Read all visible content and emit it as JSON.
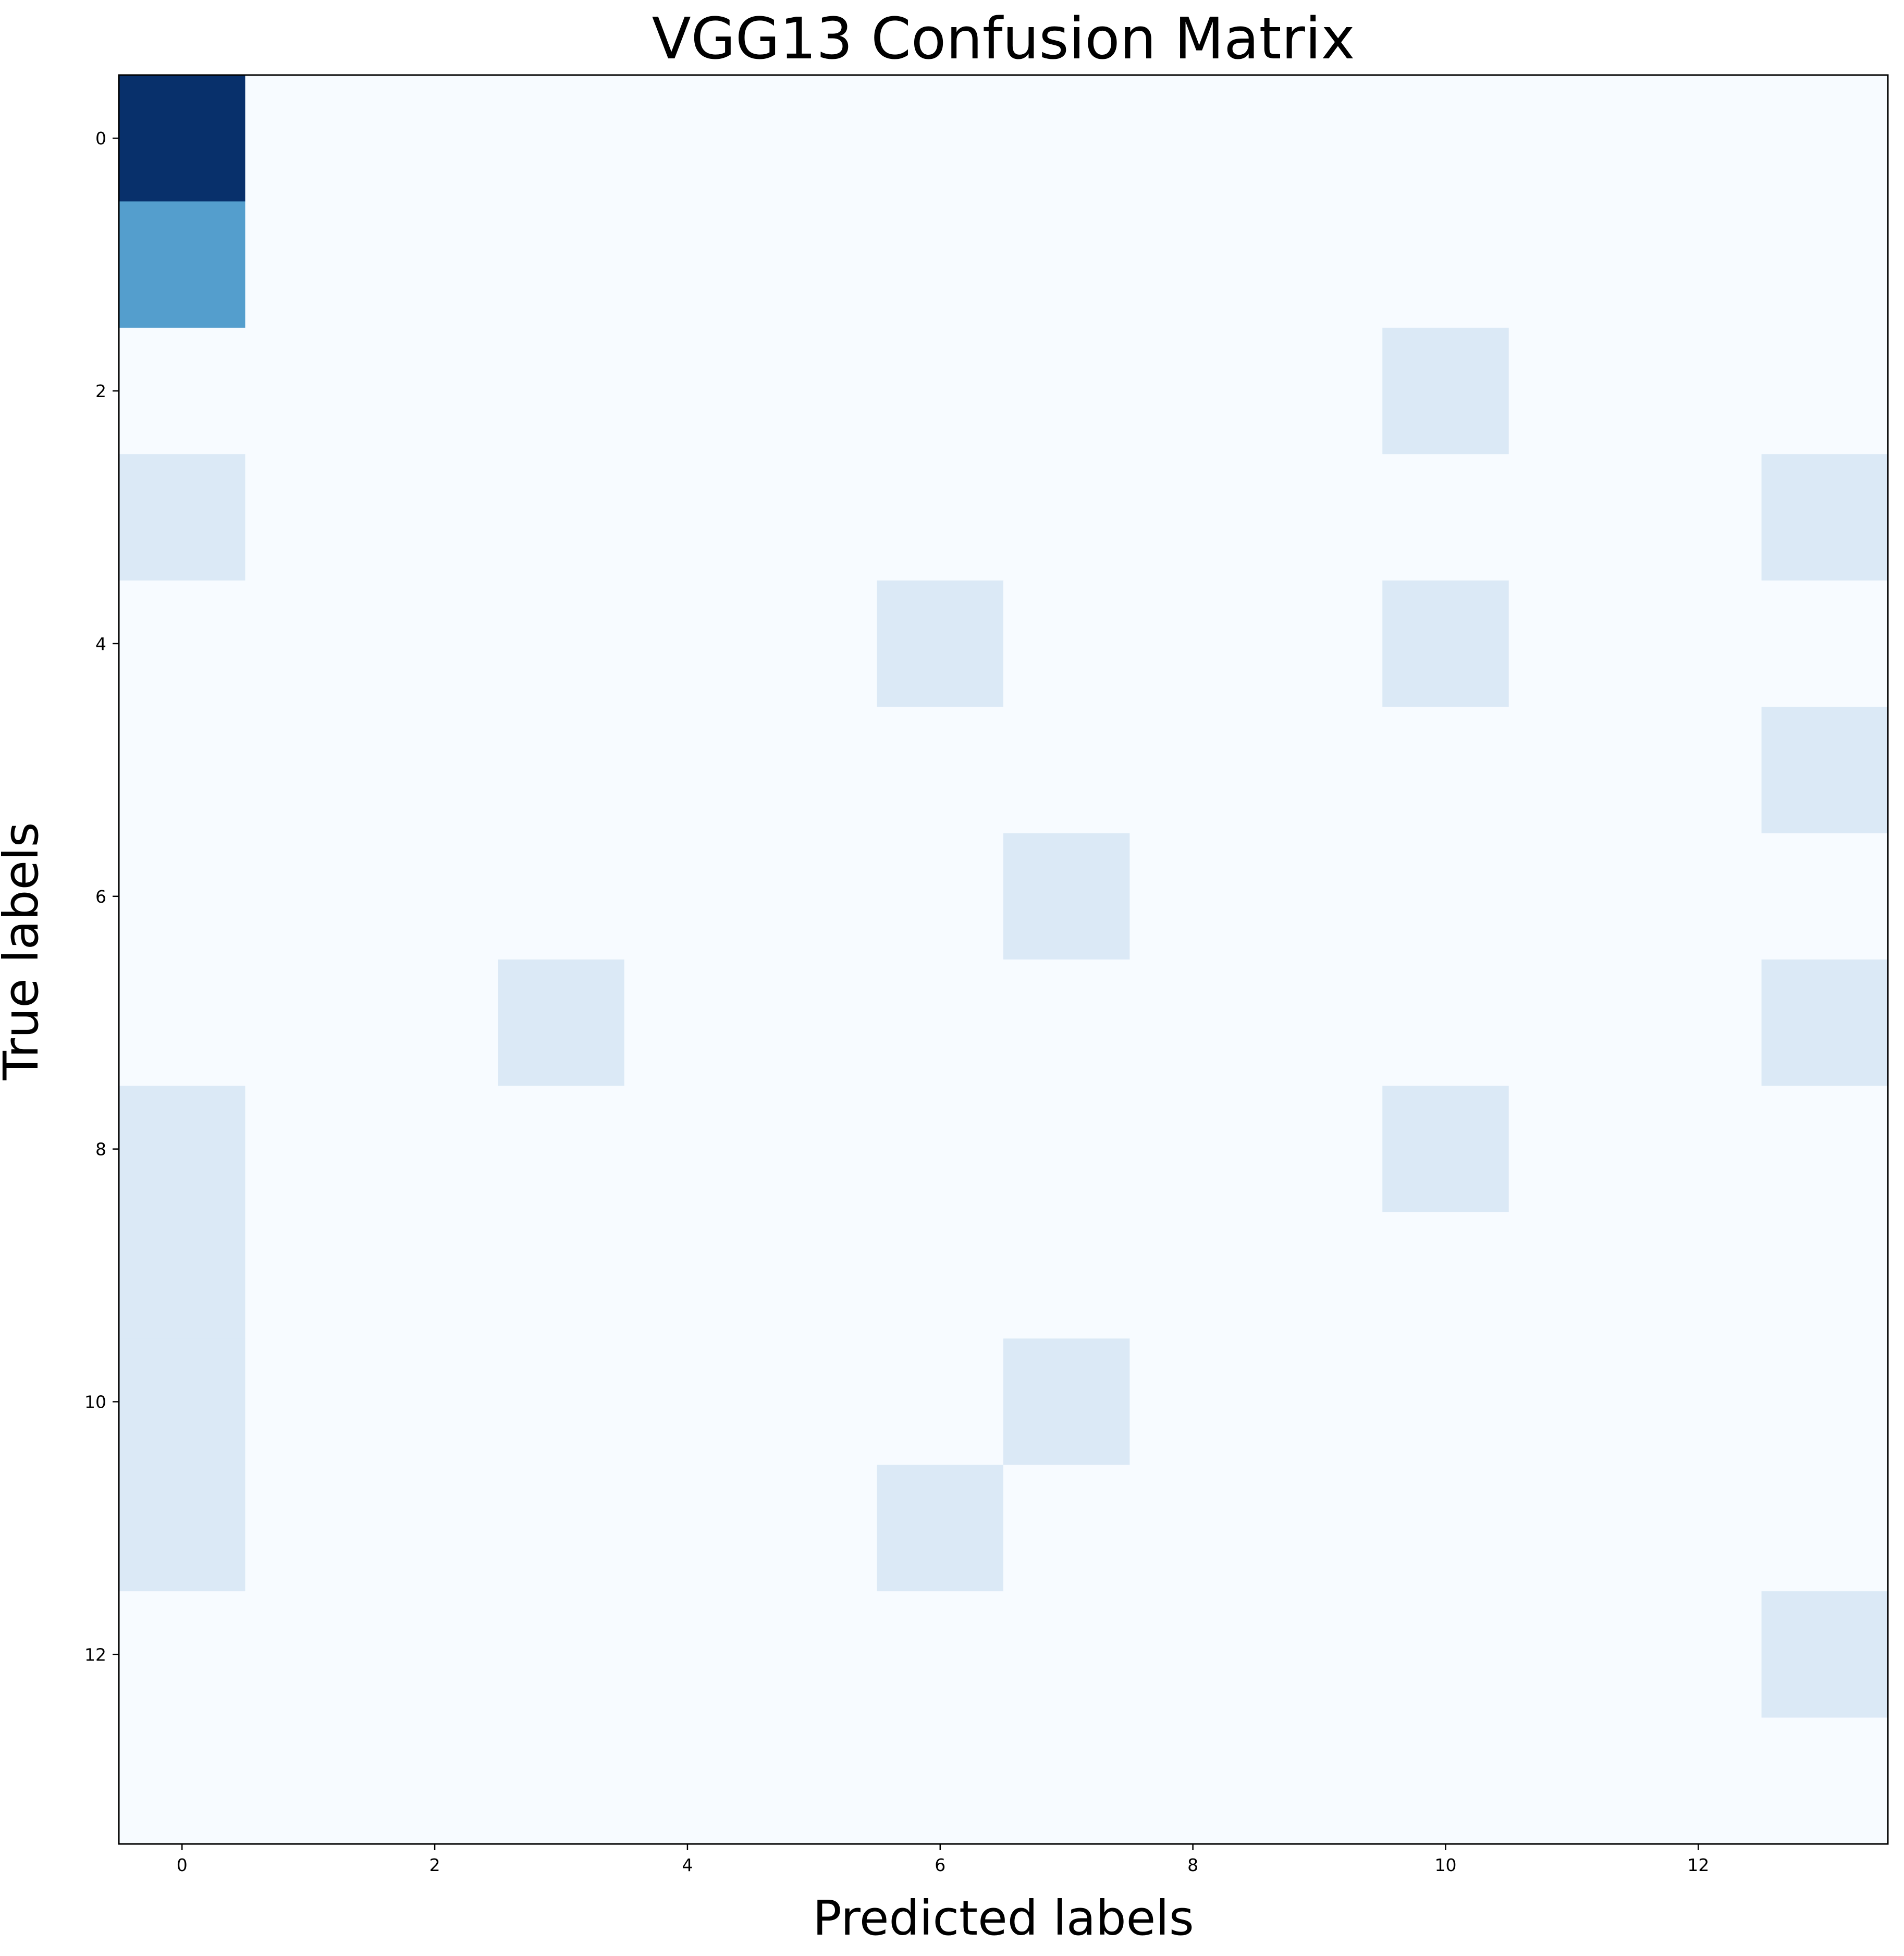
{
  "chart_data": {
    "type": "heatmap",
    "title": "VGG13 Confusion Matrix",
    "xlabel": "Predicted labels",
    "ylabel": "True labels",
    "n_classes": 14,
    "xticks": [
      0,
      2,
      4,
      6,
      8,
      10,
      12
    ],
    "yticks": [
      0,
      2,
      4,
      6,
      8,
      10,
      12
    ],
    "xlim": [
      -0.5,
      13.5
    ],
    "ylim": [
      13.5,
      -0.5
    ],
    "colormap": "Blues",
    "color_min": "#f7fbff",
    "color_max": "#08306b",
    "color_scale": {
      "min": 0,
      "max": 7
    },
    "matrix": [
      [
        7,
        0,
        0,
        0,
        0,
        0,
        0,
        0,
        0,
        0,
        0,
        0,
        0,
        0
      ],
      [
        4,
        0,
        0,
        0,
        0,
        0,
        0,
        0,
        0,
        0,
        0,
        0,
        0,
        0
      ],
      [
        0,
        0,
        0,
        0,
        0,
        0,
        0,
        0,
        0,
        0,
        1,
        0,
        0,
        0
      ],
      [
        1,
        0,
        0,
        0,
        0,
        0,
        0,
        0,
        0,
        0,
        0,
        0,
        0,
        1
      ],
      [
        0,
        0,
        0,
        0,
        0,
        0,
        1,
        0,
        0,
        0,
        1,
        0,
        0,
        0
      ],
      [
        0,
        0,
        0,
        0,
        0,
        0,
        0,
        0,
        0,
        0,
        0,
        0,
        0,
        1
      ],
      [
        0,
        0,
        0,
        0,
        0,
        0,
        0,
        1,
        0,
        0,
        0,
        0,
        0,
        0
      ],
      [
        0,
        0,
        0,
        1,
        0,
        0,
        0,
        0,
        0,
        0,
        0,
        0,
        0,
        1
      ],
      [
        1,
        0,
        0,
        0,
        0,
        0,
        0,
        0,
        0,
        0,
        1,
        0,
        0,
        0
      ],
      [
        1,
        0,
        0,
        0,
        0,
        0,
        0,
        0,
        0,
        0,
        0,
        0,
        0,
        0
      ],
      [
        1,
        0,
        0,
        0,
        0,
        0,
        0,
        1,
        0,
        0,
        0,
        0,
        0,
        0
      ],
      [
        1,
        0,
        0,
        0,
        0,
        0,
        1,
        0,
        0,
        0,
        0,
        0,
        0,
        0
      ],
      [
        0,
        0,
        0,
        0,
        0,
        0,
        0,
        0,
        0,
        0,
        0,
        0,
        0,
        1
      ],
      [
        0,
        0,
        0,
        0,
        0,
        0,
        0,
        0,
        0,
        0,
        0,
        0,
        0,
        0
      ]
    ]
  }
}
